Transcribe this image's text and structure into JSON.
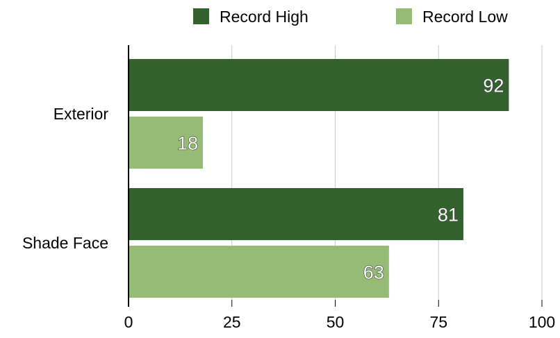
{
  "chart_data": {
    "type": "bar",
    "orientation": "horizontal",
    "categories": [
      "Exterior",
      "Shade Face"
    ],
    "series": [
      {
        "name": "Record High",
        "values": [
          92,
          81
        ],
        "color": "#34622e"
      },
      {
        "name": "Record Low",
        "values": [
          18,
          63
        ],
        "color": "#95bb75"
      }
    ],
    "xlim": [
      0,
      100
    ],
    "x_ticks": [
      "0",
      "25",
      "50",
      "75",
      "100"
    ],
    "grid": true,
    "legend_position": "top",
    "data_labels": true
  }
}
